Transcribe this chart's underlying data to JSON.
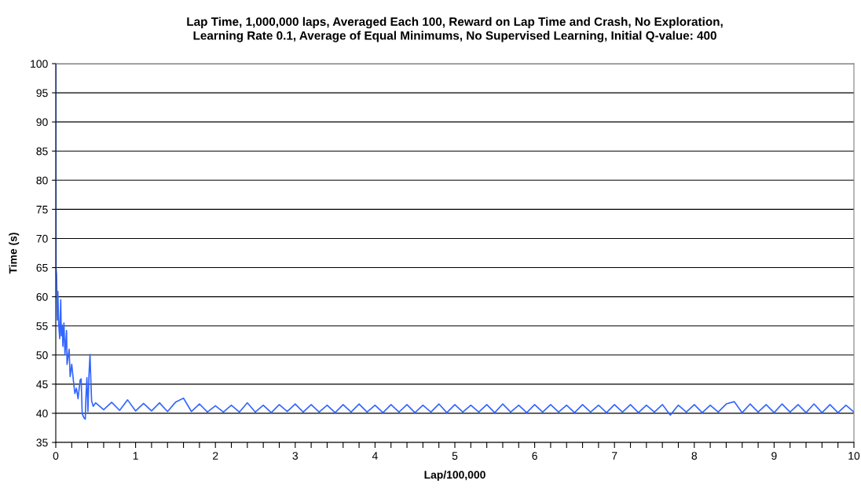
{
  "chart_data": {
    "type": "line",
    "title": "Lap Time, 1,000,000 laps, Averaged Each 100, Reward on Lap Time and Crash, No Exploration,\nLearning Rate 0.1, Average of Equal Minimums, No Supervised Learning, Initial Q-value: 400",
    "xlabel": "Lap/100,000",
    "ylabel": "Time (s)",
    "x": [
      0,
      0.003,
      0.01,
      0.02,
      0.026,
      0.036,
      0.049,
      0.062,
      0.069,
      0.082,
      0.089,
      0.102,
      0.115,
      0.135,
      0.141,
      0.167,
      0.18,
      0.2,
      0.22,
      0.239,
      0.259,
      0.279,
      0.305,
      0.318,
      0.331,
      0.354,
      0.37,
      0.377,
      0.39,
      0.403,
      0.416,
      0.429,
      0.436,
      0.449,
      0.469,
      0.5,
      0.6,
      0.7,
      0.8,
      0.9,
      1.0,
      1.1,
      1.2,
      1.3,
      1.4,
      1.5,
      1.6,
      1.7,
      1.8,
      1.9,
      2.0,
      2.1,
      2.2,
      2.3,
      2.4,
      2.5,
      2.6,
      2.7,
      2.8,
      2.9,
      3.0,
      3.1,
      3.2,
      3.3,
      3.4,
      3.5,
      3.6,
      3.7,
      3.8,
      3.9,
      4.0,
      4.1,
      4.2,
      4.3,
      4.4,
      4.5,
      4.6,
      4.7,
      4.8,
      4.9,
      5.0,
      5.1,
      5.2,
      5.3,
      5.4,
      5.5,
      5.6,
      5.7,
      5.8,
      5.9,
      6.0,
      6.1,
      6.2,
      6.3,
      6.4,
      6.5,
      6.6,
      6.7,
      6.8,
      6.9,
      7.0,
      7.1,
      7.2,
      7.3,
      7.4,
      7.5,
      7.6,
      7.7,
      7.8,
      7.9,
      8.0,
      8.1,
      8.2,
      8.3,
      8.4,
      8.5,
      8.6,
      8.7,
      8.8,
      8.9,
      9.0,
      9.1,
      9.2,
      9.3,
      9.4,
      9.5,
      9.6,
      9.7,
      9.8,
      9.9,
      10.0
    ],
    "series": [
      {
        "color": "#3366ff",
        "values": [
          100,
          64.9,
          63.6,
          56,
          60.9,
          55.5,
          52.8,
          59.5,
          53.3,
          55.1,
          51.5,
          55.5,
          50.1,
          54.2,
          48.4,
          51.0,
          46.3,
          48.4,
          45.7,
          43.4,
          44.3,
          42.5,
          45.7,
          45.9,
          39.9,
          39.2,
          39.0,
          42.5,
          46.1,
          40.3,
          46.6,
          50.1,
          47.0,
          42.1,
          41.2,
          41.8,
          40.6,
          41.9,
          40.5,
          42.3,
          40.4,
          41.7,
          40.4,
          41.8,
          40.3,
          41.9,
          42.6,
          40.3,
          41.6,
          40.2,
          41.3,
          40.2,
          41.4,
          40.2,
          41.8,
          40.2,
          41.4,
          40.1,
          41.5,
          40.3,
          41.6,
          40.2,
          41.5,
          40.2,
          41.4,
          40.1,
          41.5,
          40.2,
          41.6,
          40.2,
          41.4,
          40.1,
          41.5,
          40.2,
          41.5,
          40.1,
          41.4,
          40.2,
          41.6,
          40.1,
          41.5,
          40.2,
          41.4,
          40.2,
          41.5,
          40.1,
          41.6,
          40.2,
          41.4,
          40.1,
          41.5,
          40.2,
          41.5,
          40.2,
          41.4,
          40.1,
          41.5,
          40.2,
          41.4,
          40.1,
          41.5,
          40.2,
          41.5,
          40.1,
          41.4,
          40.2,
          41.5,
          39.7,
          41.4,
          40.2,
          41.5,
          40.1,
          41.4,
          40.2,
          41.6,
          42.0,
          40.1,
          41.6,
          40.2,
          41.5,
          40.1,
          41.6,
          40.2,
          41.5,
          40.1,
          41.6,
          40.1,
          41.5,
          40.1,
          41.4,
          40.2
        ]
      }
    ],
    "xlim": [
      0,
      10
    ],
    "ylim": [
      35,
      100
    ],
    "xticks": [
      0,
      {
        "value": 0.2,
        "label": null
      },
      {
        "value": 0.4,
        "label": null
      },
      {
        "value": 0.6,
        "label": null
      },
      {
        "value": 0.8,
        "label": null
      },
      1,
      {
        "value": 1.2,
        "label": null
      },
      {
        "value": 1.4,
        "label": null
      },
      {
        "value": 1.6,
        "label": null
      },
      {
        "value": 1.8,
        "label": null
      },
      2,
      {
        "value": 2.2,
        "label": null
      },
      {
        "value": 2.4,
        "label": null
      },
      {
        "value": 2.6,
        "label": null
      },
      {
        "value": 2.8,
        "label": null
      },
      3,
      {
        "value": 3.2,
        "label": null
      },
      {
        "value": 3.4,
        "label": null
      },
      {
        "value": 3.6,
        "label": null
      },
      {
        "value": 3.8,
        "label": null
      },
      4,
      {
        "value": 4.2,
        "label": null
      },
      {
        "value": 4.4,
        "label": null
      },
      {
        "value": 4.6,
        "label": null
      },
      {
        "value": 4.8,
        "label": null
      },
      5,
      {
        "value": 5.2,
        "label": null
      },
      {
        "value": 5.4,
        "label": null
      },
      {
        "value": 5.6,
        "label": null
      },
      {
        "value": 5.8,
        "label": null
      },
      6,
      {
        "value": 6.2,
        "label": null
      },
      {
        "value": 6.4,
        "label": null
      },
      {
        "value": 6.6,
        "label": null
      },
      {
        "value": 6.8,
        "label": null
      },
      7,
      {
        "value": 7.2,
        "label": null
      },
      {
        "value": 7.4,
        "label": null
      },
      {
        "value": 7.6,
        "label": null
      },
      {
        "value": 7.8,
        "label": null
      },
      8,
      {
        "value": 8.2,
        "label": null
      },
      {
        "value": 8.4,
        "label": null
      },
      {
        "value": 8.6,
        "label": null
      },
      {
        "value": 8.8,
        "label": null
      },
      9,
      {
        "value": 9.2,
        "label": null
      },
      {
        "value": 9.4,
        "label": null
      },
      {
        "value": 9.6,
        "label": null
      },
      {
        "value": 9.8,
        "label": null
      },
      10
    ],
    "yticks": [
      35,
      40,
      45,
      50,
      55,
      60,
      65,
      70,
      75,
      80,
      85,
      90,
      95,
      100
    ],
    "grid": "y",
    "marker": "none",
    "line_style": "solid"
  }
}
